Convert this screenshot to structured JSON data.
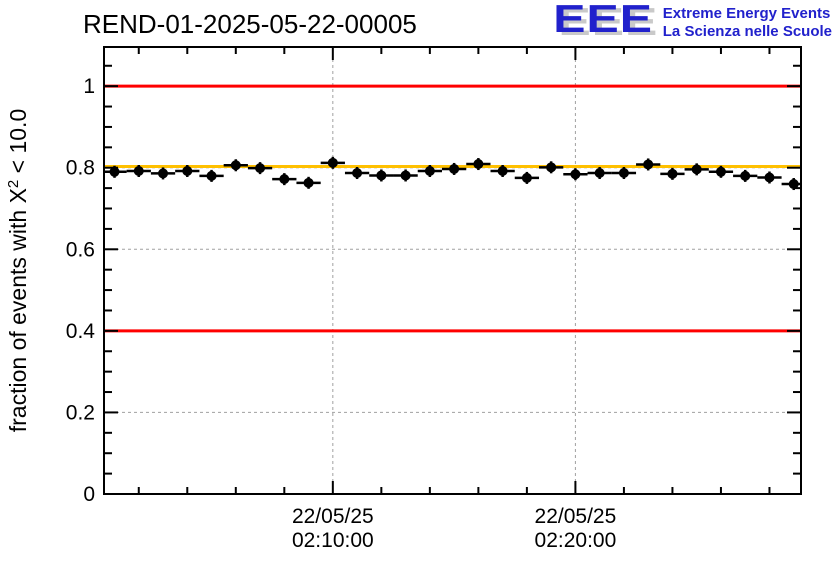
{
  "page": {
    "background": "#ffffff"
  },
  "logo": {
    "acronym": "EEE",
    "line1": "Extreme Energy Events",
    "line2": "La Scienza nelle Scuole",
    "text_color": "#2121cc",
    "shadow_color": "#c9c9c9"
  },
  "chart_data": {
    "type": "scatter",
    "title": "REND-01-2025-05-22-00005",
    "ylabel_parts": {
      "pre": "fraction of events with X",
      "sup": "2",
      "post": " < 10.0"
    },
    "grid": {
      "on": true,
      "style": "dashed",
      "color": "#a0a0a0"
    },
    "x_axis": {
      "kind": "time",
      "domain_seconds": [
        34,
        1758
      ],
      "minor_tick_interval_seconds": 120,
      "major_ticks": [
        {
          "seconds": 600,
          "label_line1": "22/05/25",
          "label_line2": "02:10:00"
        },
        {
          "seconds": 1200,
          "label_line1": "22/05/25",
          "label_line2": "02:20:00"
        }
      ]
    },
    "y_axis": {
      "domain": [
        0,
        1.096
      ],
      "minor_tick_interval": 0.05,
      "major_ticks": [
        {
          "value": 0,
          "label": "0"
        },
        {
          "value": 0.2,
          "label": "0.2"
        },
        {
          "value": 0.4,
          "label": "0.4"
        },
        {
          "value": 0.6,
          "label": "0.6"
        },
        {
          "value": 0.8,
          "label": "0.8"
        },
        {
          "value": 1,
          "label": "1"
        }
      ]
    },
    "reference_lines": [
      {
        "name": "upper-alarm-line",
        "value": 1.0,
        "color": "#ff0000",
        "width": 3
      },
      {
        "name": "lower-alarm-line",
        "value": 0.4,
        "color": "#ff0000",
        "width": 3
      },
      {
        "name": "average-line",
        "value": 0.803,
        "color": "#ffc000",
        "width": 3
      }
    ],
    "series": [
      {
        "name": "fraction-of-events-chi2",
        "marker": "full-circle",
        "marker_color": "#000000",
        "x_bin_halfwidth_seconds": 30,
        "points": [
          {
            "time": "02:01:00",
            "seconds": 60,
            "value": 0.79
          },
          {
            "time": "02:02:00",
            "seconds": 120,
            "value": 0.792
          },
          {
            "time": "02:03:00",
            "seconds": 180,
            "value": 0.786
          },
          {
            "time": "02:04:00",
            "seconds": 240,
            "value": 0.792
          },
          {
            "time": "02:05:00",
            "seconds": 300,
            "value": 0.78
          },
          {
            "time": "02:06:00",
            "seconds": 360,
            "value": 0.806
          },
          {
            "time": "02:07:00",
            "seconds": 420,
            "value": 0.799
          },
          {
            "time": "02:08:00",
            "seconds": 480,
            "value": 0.772
          },
          {
            "time": "02:09:00",
            "seconds": 540,
            "value": 0.763
          },
          {
            "time": "02:10:00",
            "seconds": 600,
            "value": 0.812
          },
          {
            "time": "02:11:00",
            "seconds": 660,
            "value": 0.787
          },
          {
            "time": "02:12:00",
            "seconds": 720,
            "value": 0.781
          },
          {
            "time": "02:13:00",
            "seconds": 780,
            "value": 0.781
          },
          {
            "time": "02:14:00",
            "seconds": 840,
            "value": 0.792
          },
          {
            "time": "02:15:00",
            "seconds": 900,
            "value": 0.797
          },
          {
            "time": "02:16:00",
            "seconds": 960,
            "value": 0.809
          },
          {
            "time": "02:17:00",
            "seconds": 1020,
            "value": 0.792
          },
          {
            "time": "02:18:00",
            "seconds": 1080,
            "value": 0.775
          },
          {
            "time": "02:19:00",
            "seconds": 1140,
            "value": 0.801
          },
          {
            "time": "02:20:00",
            "seconds": 1200,
            "value": 0.784
          },
          {
            "time": "02:21:00",
            "seconds": 1260,
            "value": 0.787
          },
          {
            "time": "02:22:00",
            "seconds": 1320,
            "value": 0.787
          },
          {
            "time": "02:23:00",
            "seconds": 1380,
            "value": 0.808
          },
          {
            "time": "02:24:00",
            "seconds": 1440,
            "value": 0.785
          },
          {
            "time": "02:25:00",
            "seconds": 1500,
            "value": 0.796
          },
          {
            "time": "02:26:00",
            "seconds": 1560,
            "value": 0.79
          },
          {
            "time": "02:27:00",
            "seconds": 1620,
            "value": 0.78
          },
          {
            "time": "02:28:00",
            "seconds": 1680,
            "value": 0.776
          },
          {
            "time": "02:29:00",
            "seconds": 1740,
            "value": 0.76
          }
        ]
      }
    ]
  }
}
